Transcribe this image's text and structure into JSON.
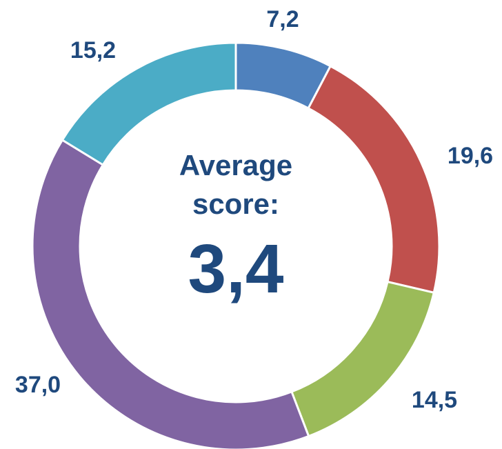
{
  "chart_data": {
    "type": "donut",
    "values": [
      7.2,
      19.6,
      14.5,
      37.0,
      15.2
    ],
    "value_labels": [
      "7,2",
      "19,6",
      "14,5",
      "37,0",
      "15,2"
    ],
    "colors": [
      "#4f81bd",
      "#c0504d",
      "#9bbb59",
      "#8064a2",
      "#4bacc6"
    ],
    "annotation": "Average score:",
    "center_value": "3,4"
  }
}
